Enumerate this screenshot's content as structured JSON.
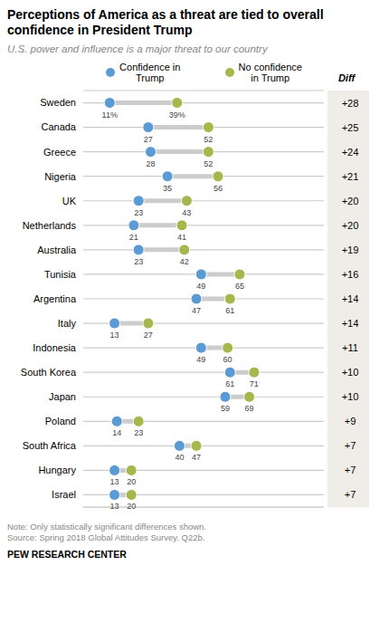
{
  "chart_data": {
    "type": "dumbbell",
    "title": "Perceptions of America as a threat are tied to overall\nconfidence in President Trump",
    "subtitle": "U.S. power and influence is a major threat to our country",
    "categories": [
      "Sweden",
      "Canada",
      "Greece",
      "Nigeria",
      "UK",
      "Netherlands",
      "Australia",
      "Tunisia",
      "Argentina",
      "Italy",
      "Indonesia",
      "South Korea",
      "Japan",
      "Poland",
      "South Africa",
      "Hungary",
      "Israel"
    ],
    "series": [
      {
        "name": "Confidence in\nTrump",
        "color": "#5b9bd5",
        "values": [
          11,
          27,
          28,
          35,
          23,
          21,
          23,
          49,
          47,
          13,
          49,
          61,
          59,
          14,
          40,
          13,
          13
        ],
        "value_labels": [
          "11%",
          "27",
          "28",
          "35",
          "23",
          "21",
          "23",
          "49",
          "47",
          "13",
          "49",
          "61",
          "59",
          "14",
          "40",
          "13",
          "13"
        ]
      },
      {
        "name": "No confidence\nin Trump",
        "color": "#a5b84e",
        "values": [
          39,
          52,
          52,
          56,
          43,
          41,
          42,
          65,
          61,
          27,
          60,
          71,
          69,
          23,
          47,
          20,
          20
        ],
        "value_labels": [
          "39%",
          "52",
          "52",
          "56",
          "43",
          "41",
          "42",
          "65",
          "61",
          "27",
          "60",
          "71",
          "69",
          "23",
          "47",
          "20",
          "20"
        ]
      }
    ],
    "diff": {
      "title": "Diff",
      "values": [
        28,
        25,
        24,
        21,
        20,
        20,
        19,
        16,
        14,
        14,
        11,
        10,
        10,
        9,
        7,
        7,
        7
      ],
      "value_labels": [
        "+28",
        "+25",
        "+24",
        "+21",
        "+20",
        "+20",
        "+19",
        "+16",
        "+14",
        "+14",
        "+11",
        "+10",
        "+10",
        "+9",
        "+7",
        "+7",
        "+7"
      ]
    },
    "xlim": [
      0,
      100
    ],
    "tick_labels": "y",
    "data_labels": true,
    "grid": true,
    "note": "Note: Only statistically significant differences shown.\nSource: Spring 2018 Global Attitudes Survey. Q22b.",
    "source": "PEW RESEARCH CENTER"
  }
}
